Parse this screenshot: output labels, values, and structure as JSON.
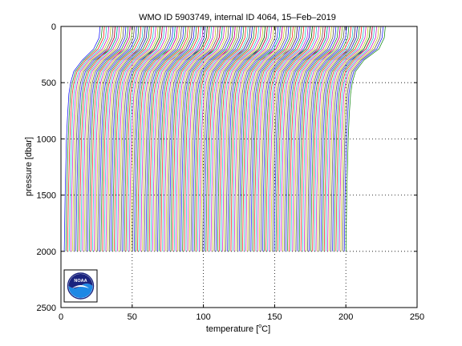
{
  "chart_data": {
    "type": "line",
    "title": "WMO ID 5903749, internal ID 4064, 15–Feb–2019",
    "xlabel_pre": "temperature [",
    "xlabel_sup": "o",
    "xlabel_post": "C]",
    "ylabel": "pressure [dbar]",
    "xlim": [
      0,
      250
    ],
    "ylim": [
      2500,
      0
    ],
    "y_reversed": true,
    "grid": "dotted",
    "x_ticks": [
      0,
      50,
      100,
      150,
      200,
      250
    ],
    "x_tick_labels": [
      "0",
      "50",
      "100",
      "150",
      "200",
      "250"
    ],
    "y_ticks": [
      0,
      500,
      1000,
      1500,
      2000,
      2500
    ],
    "y_tick_labels": [
      "0",
      "500",
      "1000",
      "1500",
      "2000",
      "2500"
    ],
    "profile_count": 170,
    "profile_offset_step": 1.17,
    "base_profile": {
      "pressure": [
        0,
        100,
        200,
        300,
        400,
        500,
        600,
        800,
        1000,
        1500,
        2000
      ],
      "temperature": [
        27.5,
        26.8,
        23.0,
        15.0,
        9.0,
        6.8,
        5.6,
        4.6,
        3.9,
        2.9,
        2.3
      ]
    },
    "series_colors": [
      "#0000ff",
      "#008000",
      "#ff0000",
      "#00bfbf",
      "#bf00bf",
      "#bfbf00",
      "#404040"
    ]
  },
  "logo": {
    "text": "NOAA",
    "colors": {
      "navy": "#1a237e",
      "blue": "#1e88e5",
      "light": "#29b6f6"
    }
  }
}
